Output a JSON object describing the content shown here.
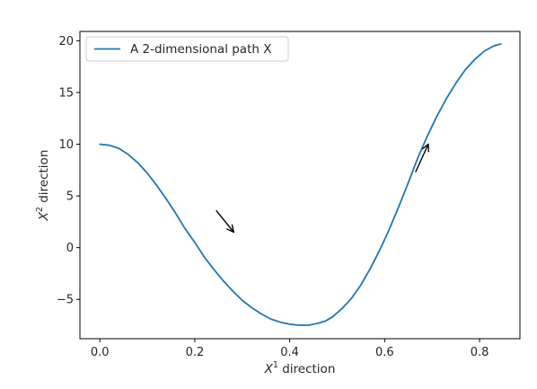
{
  "chart_data": {
    "type": "line",
    "xlabel": {
      "symbol": "X",
      "sup": "1",
      "text": " direction"
    },
    "ylabel": {
      "symbol": "X",
      "sup": "2",
      "text": "  direction"
    },
    "xlim": [
      -0.042,
      0.885
    ],
    "ylim": [
      -8.8,
      20.9
    ],
    "xticks": [
      0.0,
      0.2,
      0.4,
      0.6,
      0.8
    ],
    "xtick_labels": [
      "0.0",
      "0.2",
      "0.4",
      "0.6",
      "0.8"
    ],
    "yticks": [
      -5,
      0,
      5,
      10,
      15,
      20
    ],
    "ytick_labels": [
      "−5",
      "0",
      "5",
      "10",
      "15",
      "20"
    ],
    "grid": false,
    "legend_position": "top-left",
    "series": [
      {
        "name": "A 2-dimensional path X",
        "color": "#1f77b4",
        "x": [
          0.0,
          0.02,
          0.04,
          0.06,
          0.08,
          0.1,
          0.12,
          0.14,
          0.16,
          0.18,
          0.2,
          0.22,
          0.24,
          0.26,
          0.28,
          0.3,
          0.32,
          0.34,
          0.36,
          0.38,
          0.4,
          0.42,
          0.44,
          0.46,
          0.475,
          0.49,
          0.51,
          0.53,
          0.55,
          0.57,
          0.59,
          0.61,
          0.63,
          0.65,
          0.67,
          0.69,
          0.71,
          0.73,
          0.75,
          0.77,
          0.79,
          0.81,
          0.83,
          0.845
        ],
        "y": [
          10.0,
          9.9,
          9.6,
          9.0,
          8.2,
          7.2,
          6.0,
          4.7,
          3.3,
          1.8,
          0.5,
          -0.9,
          -2.1,
          -3.2,
          -4.2,
          -5.1,
          -5.8,
          -6.4,
          -6.9,
          -7.2,
          -7.4,
          -7.5,
          -7.5,
          -7.3,
          -7.1,
          -6.7,
          -5.9,
          -4.9,
          -3.6,
          -2.0,
          -0.2,
          1.8,
          4.0,
          6.3,
          8.7,
          10.8,
          12.7,
          14.4,
          15.9,
          17.2,
          18.2,
          19.0,
          19.5,
          19.7
        ]
      }
    ],
    "arrows": [
      {
        "direction": "down-right",
        "from": [
          0.245,
          3.6
        ],
        "to": [
          0.282,
          1.5
        ]
      },
      {
        "direction": "up-right",
        "from": [
          0.665,
          7.3
        ],
        "to": [
          0.692,
          10.0
        ]
      }
    ]
  }
}
